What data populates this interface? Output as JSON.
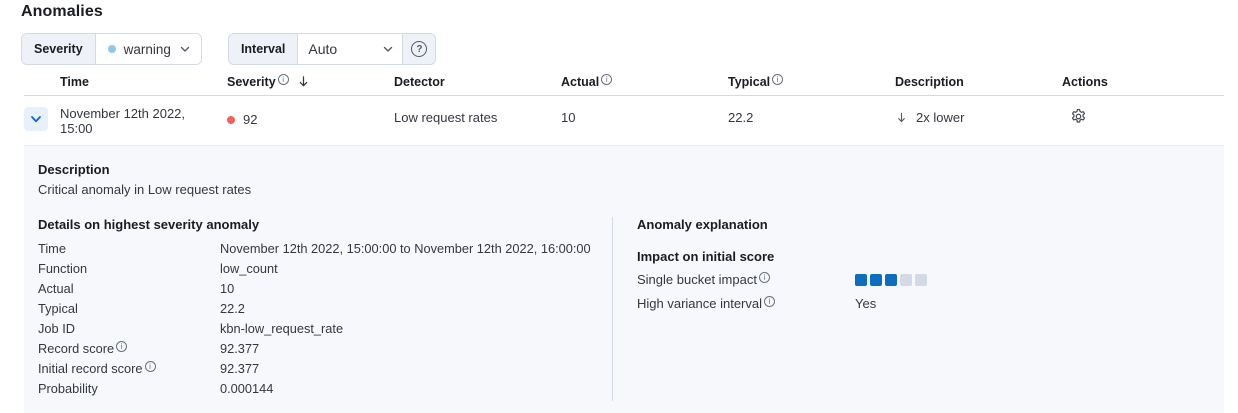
{
  "page": {
    "title": "Anomalies"
  },
  "filters": {
    "severity": {
      "label": "Severity",
      "value": "warning"
    },
    "interval": {
      "label": "Interval",
      "value": "Auto",
      "help_label": "?"
    }
  },
  "table": {
    "headers": {
      "time": "Time",
      "severity": "Severity",
      "detector": "Detector",
      "actual": "Actual",
      "typical": "Typical",
      "description": "Description",
      "actions": "Actions"
    },
    "row": {
      "time": "November 12th 2022, 15:00",
      "severity_score": "92",
      "detector": "Low request rates",
      "actual": "10",
      "typical": "22.2",
      "description_arrow": "↓",
      "description": "2x lower"
    }
  },
  "expanded": {
    "description": {
      "title": "Description",
      "text": "Critical anomaly in Low request rates"
    },
    "details": {
      "title": "Details on highest severity anomaly",
      "fields": [
        {
          "label": "Time",
          "value": "November 12th 2022, 15:00:00 to November 12th 2022, 16:00:00"
        },
        {
          "label": "Function",
          "value": "low_count"
        },
        {
          "label": "Actual",
          "value": "10"
        },
        {
          "label": "Typical",
          "value": "22.2"
        },
        {
          "label": "Job ID",
          "value": "kbn-low_request_rate"
        },
        {
          "label": "Record score",
          "value": "92.377"
        },
        {
          "label": "Initial record score",
          "value": "92.377"
        },
        {
          "label": "Probability",
          "value": "0.000144"
        }
      ]
    },
    "explanation": {
      "title": "Anomaly explanation",
      "impact_section_title": "Impact on initial score",
      "single_bucket_impact": {
        "label": "Single bucket impact",
        "filled": 3,
        "total": 5
      },
      "high_variance": {
        "label": "High variance interval",
        "value": "Yes"
      }
    }
  },
  "colors": {
    "severity_warning_dot": "#8bc8f2",
    "severity_critical_dot": "#f5615c",
    "impact_filled": "#0e6dbd",
    "impact_empty": "#d3dae6",
    "accent_blue": "#0b64dd"
  }
}
